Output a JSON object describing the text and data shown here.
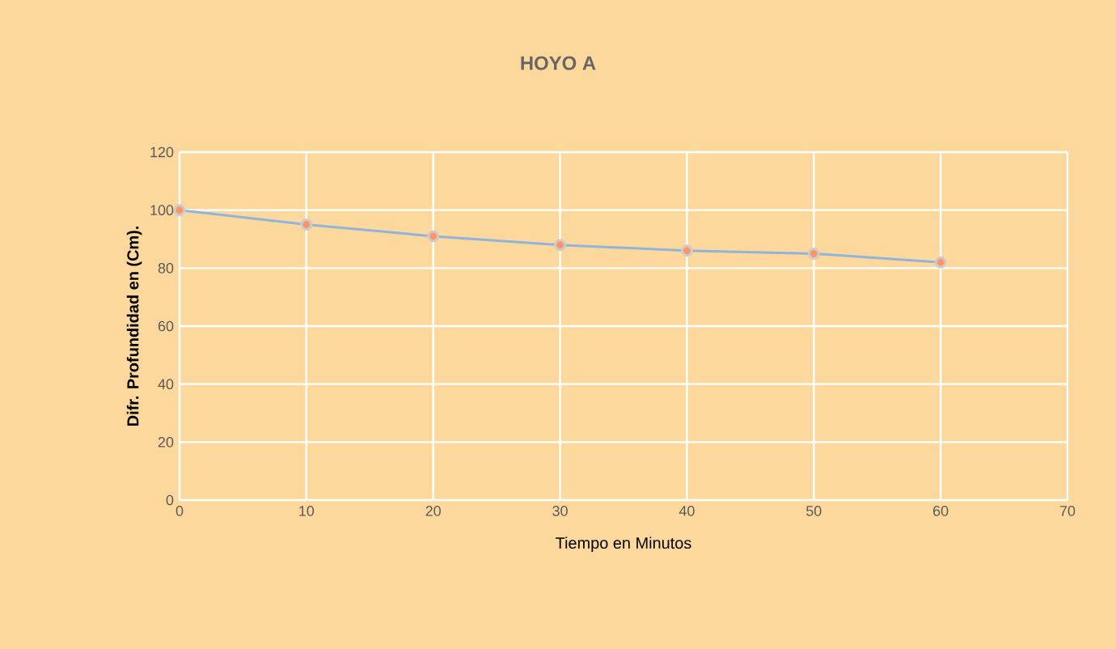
{
  "chart_data": {
    "type": "line",
    "title": "HOYO A",
    "xlabel": "Tiempo en Minutos",
    "ylabel": "Difr. Profundidad  en (Cm).",
    "x": [
      0,
      10,
      20,
      30,
      40,
      50,
      60
    ],
    "series": [
      {
        "color": "#8fb4de",
        "values": [
          100,
          95,
          91,
          88,
          86,
          85,
          82
        ]
      }
    ],
    "xlim": [
      0,
      70
    ],
    "ylim": [
      0,
      120
    ],
    "xticks": [
      0,
      10,
      20,
      30,
      40,
      50,
      60,
      70
    ],
    "yticks": [
      0,
      20,
      40,
      60,
      80,
      100,
      120
    ],
    "grid": true,
    "marker": "circle",
    "line_style": "solid"
  }
}
